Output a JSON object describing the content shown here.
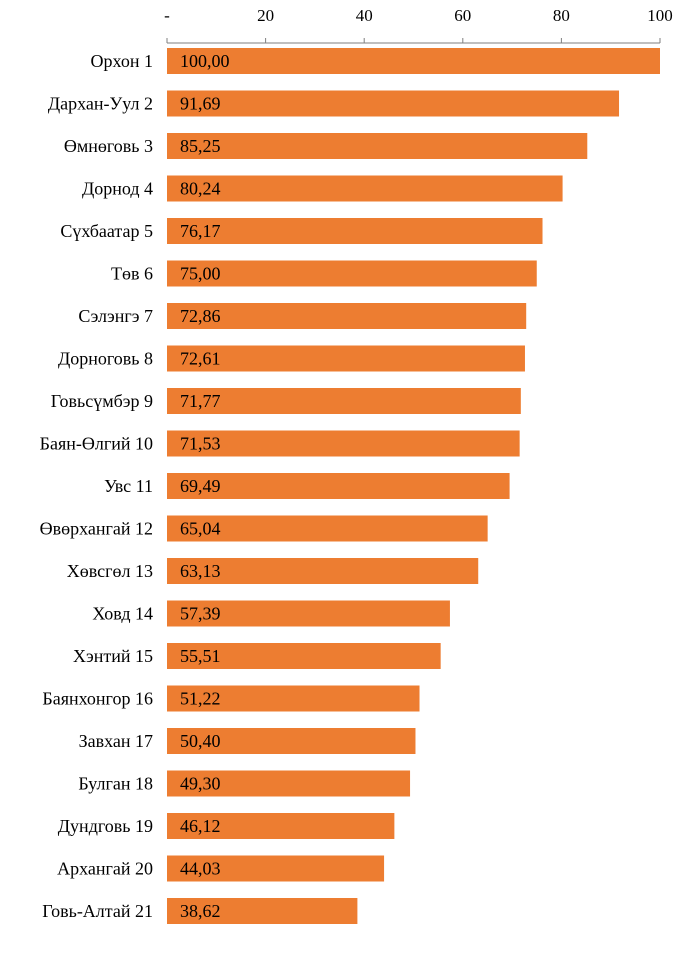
{
  "chart_data": {
    "type": "bar",
    "orientation": "horizontal",
    "categories": [
      "Орхон 1",
      "Дархан-Уул 2",
      "Өмнөговь 3",
      "Дорнод 4",
      "Сүхбаатар 5",
      "Төв 6",
      "Сэлэнгэ 7",
      "Дорноговь 8",
      "Говьсүмбэр 9",
      "Баян-Өлгий 10",
      "Увс 11",
      "Өвөрхангай 12",
      "Хөвсгөл 13",
      "Ховд 14",
      "Хэнтий 15",
      "Баянхонгор 16",
      "Завхан 17",
      "Булган 18",
      "Дундговь 19",
      "Архангай 20",
      "Говь-Алтай 21"
    ],
    "values": [
      100.0,
      91.69,
      85.25,
      80.24,
      76.17,
      75.0,
      72.86,
      72.61,
      71.77,
      71.53,
      69.49,
      65.04,
      63.13,
      57.39,
      55.51,
      51.22,
      50.4,
      49.3,
      46.12,
      44.03,
      38.62
    ],
    "data_labels": [
      "100,00",
      "91,69",
      "85,25",
      "80,24",
      "76,17",
      "75,00",
      "72,86",
      "72,61",
      "71,77",
      "71,53",
      "69,49",
      "65,04",
      "63,13",
      "57,39",
      "55,51",
      "51,22",
      "50,40",
      "49,30",
      "46,12",
      "44,03",
      "38,62"
    ],
    "xlim": [
      0,
      100
    ],
    "x_ticks": [
      0,
      20,
      40,
      60,
      80,
      100
    ],
    "x_tick_labels": [
      "-",
      "20",
      "40",
      "60",
      "80",
      "100"
    ],
    "x_axis_position": "top",
    "bar_color": "#ED7D31",
    "grid": false,
    "legend": "none"
  }
}
